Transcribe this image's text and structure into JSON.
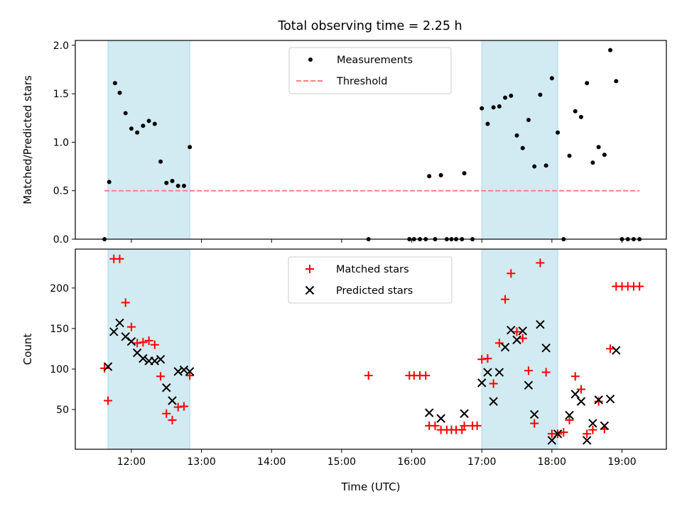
{
  "title": "Total observing time = 2.25 h",
  "colors": {
    "shade": "#add8e6",
    "measurement": "#000000",
    "threshold": "#ff7f7f",
    "matched": "#ff0000",
    "predicted": "#000000"
  },
  "chart_data": [
    {
      "type": "scatter",
      "ylabel": "Matched/Predicted stars",
      "xlabel": "",
      "xlim": [
        "11:12",
        "19:38"
      ],
      "ylim": [
        0,
        2.05
      ],
      "yticks": [
        0.0,
        0.5,
        1.0,
        1.5,
        2.0
      ],
      "ytick_labels": [
        "0.0",
        "0.5",
        "1.0",
        "1.5",
        "2.0"
      ],
      "xticks": [
        "12:00",
        "13:00",
        "14:00",
        "15:00",
        "16:00",
        "17:00",
        "18:00",
        "19:00"
      ],
      "xtick_labels_shown": false,
      "grid": false,
      "legend": {
        "placement": "upper center",
        "entries": [
          "Measurements",
          "Threshold"
        ]
      },
      "shaded_intervals": [
        [
          "11:40",
          "12:50"
        ],
        [
          "17:00",
          "18:05"
        ]
      ],
      "threshold": {
        "name": "Threshold",
        "y": 0.5,
        "x_range": [
          "11:37",
          "19:15"
        ]
      },
      "series": [
        {
          "name": "Measurements",
          "marker": "dot",
          "points": [
            [
              "11:37",
              0.0
            ],
            [
              "11:41",
              0.59
            ],
            [
              "11:46",
              1.61
            ],
            [
              "11:50",
              1.51
            ],
            [
              "11:55",
              1.3
            ],
            [
              "12:00",
              1.14
            ],
            [
              "12:05",
              1.1
            ],
            [
              "12:10",
              1.17
            ],
            [
              "12:15",
              1.22
            ],
            [
              "12:20",
              1.19
            ],
            [
              "12:25",
              0.8
            ],
            [
              "12:30",
              0.58
            ],
            [
              "12:35",
              0.6
            ],
            [
              "12:40",
              0.55
            ],
            [
              "12:45",
              0.55
            ],
            [
              "12:50",
              0.95
            ],
            [
              "15:23",
              0.0
            ],
            [
              "15:58",
              0.0
            ],
            [
              "16:02",
              0.0
            ],
            [
              "16:07",
              0.0
            ],
            [
              "16:12",
              0.0
            ],
            [
              "16:15",
              0.65
            ],
            [
              "16:20",
              0.0
            ],
            [
              "16:25",
              0.66
            ],
            [
              "16:30",
              0.0
            ],
            [
              "16:34",
              0.0
            ],
            [
              "16:38",
              0.0
            ],
            [
              "16:43",
              0.0
            ],
            [
              "16:45",
              0.68
            ],
            [
              "16:52",
              0.0
            ],
            [
              "17:00",
              1.35
            ],
            [
              "17:05",
              1.19
            ],
            [
              "17:10",
              1.36
            ],
            [
              "17:15",
              1.37
            ],
            [
              "17:20",
              1.46
            ],
            [
              "17:25",
              1.48
            ],
            [
              "17:30",
              1.07
            ],
            [
              "17:35",
              0.94
            ],
            [
              "17:40",
              1.23
            ],
            [
              "17:45",
              0.75
            ],
            [
              "17:50",
              1.49
            ],
            [
              "17:55",
              0.76
            ],
            [
              "18:00",
              1.66
            ],
            [
              "18:05",
              1.1
            ],
            [
              "18:10",
              0.0
            ],
            [
              "18:15",
              0.86
            ],
            [
              "18:20",
              1.32
            ],
            [
              "18:25",
              1.26
            ],
            [
              "18:30",
              1.61
            ],
            [
              "18:35",
              0.79
            ],
            [
              "18:40",
              0.95
            ],
            [
              "18:45",
              0.87
            ],
            [
              "18:50",
              1.95
            ],
            [
              "18:55",
              1.63
            ],
            [
              "19:00",
              0.0
            ],
            [
              "19:05",
              0.0
            ],
            [
              "19:10",
              0.0
            ],
            [
              "19:15",
              0.0
            ]
          ]
        }
      ]
    },
    {
      "type": "scatter",
      "ylabel": "Count",
      "xlabel": "Time (UTC)",
      "xlim": [
        "11:12",
        "19:38"
      ],
      "ylim": [
        1,
        248
      ],
      "yticks": [
        50,
        100,
        150,
        200
      ],
      "ytick_labels": [
        "50",
        "100",
        "150",
        "200"
      ],
      "xticks": [
        "12:00",
        "13:00",
        "14:00",
        "15:00",
        "16:00",
        "17:00",
        "18:00",
        "19:00"
      ],
      "xtick_labels": [
        "12:00",
        "13:00",
        "14:00",
        "15:00",
        "16:00",
        "17:00",
        "18:00",
        "19:00"
      ],
      "grid": false,
      "legend": {
        "placement": "upper center",
        "entries": [
          "Matched stars",
          "Predicted stars"
        ]
      },
      "shaded_intervals": [
        [
          "11:40",
          "12:50"
        ],
        [
          "17:00",
          "18:05"
        ]
      ],
      "series": [
        {
          "name": "Matched stars",
          "marker": "plus",
          "points": [
            [
              "11:37",
              101
            ],
            [
              "11:40",
              61
            ],
            [
              "11:45",
              236
            ],
            [
              "11:50",
              236
            ],
            [
              "11:55",
              182
            ],
            [
              "12:00",
              152
            ],
            [
              "12:05",
              132
            ],
            [
              "12:10",
              133
            ],
            [
              "12:15",
              135
            ],
            [
              "12:20",
              130
            ],
            [
              "12:25",
              91
            ],
            [
              "12:30",
              45
            ],
            [
              "12:35",
              37
            ],
            [
              "12:40",
              53
            ],
            [
              "12:45",
              54
            ],
            [
              "12:50",
              92
            ],
            [
              "15:23",
              92
            ],
            [
              "15:58",
              92
            ],
            [
              "16:02",
              92
            ],
            [
              "16:07",
              92
            ],
            [
              "16:12",
              92
            ],
            [
              "16:15",
              30
            ],
            [
              "16:20",
              30
            ],
            [
              "16:25",
              25
            ],
            [
              "16:30",
              25
            ],
            [
              "16:34",
              25
            ],
            [
              "16:38",
              25
            ],
            [
              "16:43",
              25
            ],
            [
              "16:45",
              30
            ],
            [
              "16:52",
              30
            ],
            [
              "16:56",
              30
            ],
            [
              "17:00",
              112
            ],
            [
              "17:05",
              113
            ],
            [
              "17:10",
              82
            ],
            [
              "17:15",
              132
            ],
            [
              "17:20",
              186
            ],
            [
              "17:25",
              218
            ],
            [
              "17:30",
              146
            ],
            [
              "17:35",
              138
            ],
            [
              "17:40",
              98
            ],
            [
              "17:45",
              33
            ],
            [
              "17:50",
              231
            ],
            [
              "17:55",
              96
            ],
            [
              "18:00",
              20
            ],
            [
              "18:05",
              20
            ],
            [
              "18:10",
              22
            ],
            [
              "18:15",
              37
            ],
            [
              "18:20",
              91
            ],
            [
              "18:25",
              75
            ],
            [
              "18:30",
              20
            ],
            [
              "18:35",
              25
            ],
            [
              "18:40",
              60
            ],
            [
              "18:45",
              26
            ],
            [
              "18:50",
              125
            ],
            [
              "18:55",
              202
            ],
            [
              "19:00",
              202
            ],
            [
              "19:05",
              202
            ],
            [
              "19:10",
              202
            ],
            [
              "19:15",
              202
            ]
          ]
        },
        {
          "name": "Predicted stars",
          "marker": "x",
          "points": [
            [
              "11:40",
              103
            ],
            [
              "11:45",
              146
            ],
            [
              "11:50",
              157
            ],
            [
              "11:55",
              140
            ],
            [
              "12:00",
              134
            ],
            [
              "12:05",
              120
            ],
            [
              "12:10",
              113
            ],
            [
              "12:15",
              110
            ],
            [
              "12:20",
              110
            ],
            [
              "12:25",
              112
            ],
            [
              "12:30",
              77
            ],
            [
              "12:35",
              61
            ],
            [
              "12:40",
              97
            ],
            [
              "12:45",
              99
            ],
            [
              "12:50",
              97
            ],
            [
              "16:15",
              46
            ],
            [
              "16:25",
              39
            ],
            [
              "16:45",
              45
            ],
            [
              "17:00",
              83
            ],
            [
              "17:05",
              96
            ],
            [
              "17:10",
              60
            ],
            [
              "17:15",
              96
            ],
            [
              "17:20",
              127
            ],
            [
              "17:25",
              148
            ],
            [
              "17:30",
              136
            ],
            [
              "17:35",
              147
            ],
            [
              "17:40",
              80
            ],
            [
              "17:45",
              44
            ],
            [
              "17:50",
              155
            ],
            [
              "17:55",
              126
            ],
            [
              "18:00",
              12
            ],
            [
              "18:05",
              20
            ],
            [
              "18:15",
              43
            ],
            [
              "18:20",
              69
            ],
            [
              "18:25",
              60
            ],
            [
              "18:30",
              12
            ],
            [
              "18:35",
              33
            ],
            [
              "18:40",
              62
            ],
            [
              "18:45",
              30
            ],
            [
              "18:50",
              63
            ],
            [
              "18:55",
              123
            ]
          ]
        }
      ]
    }
  ]
}
